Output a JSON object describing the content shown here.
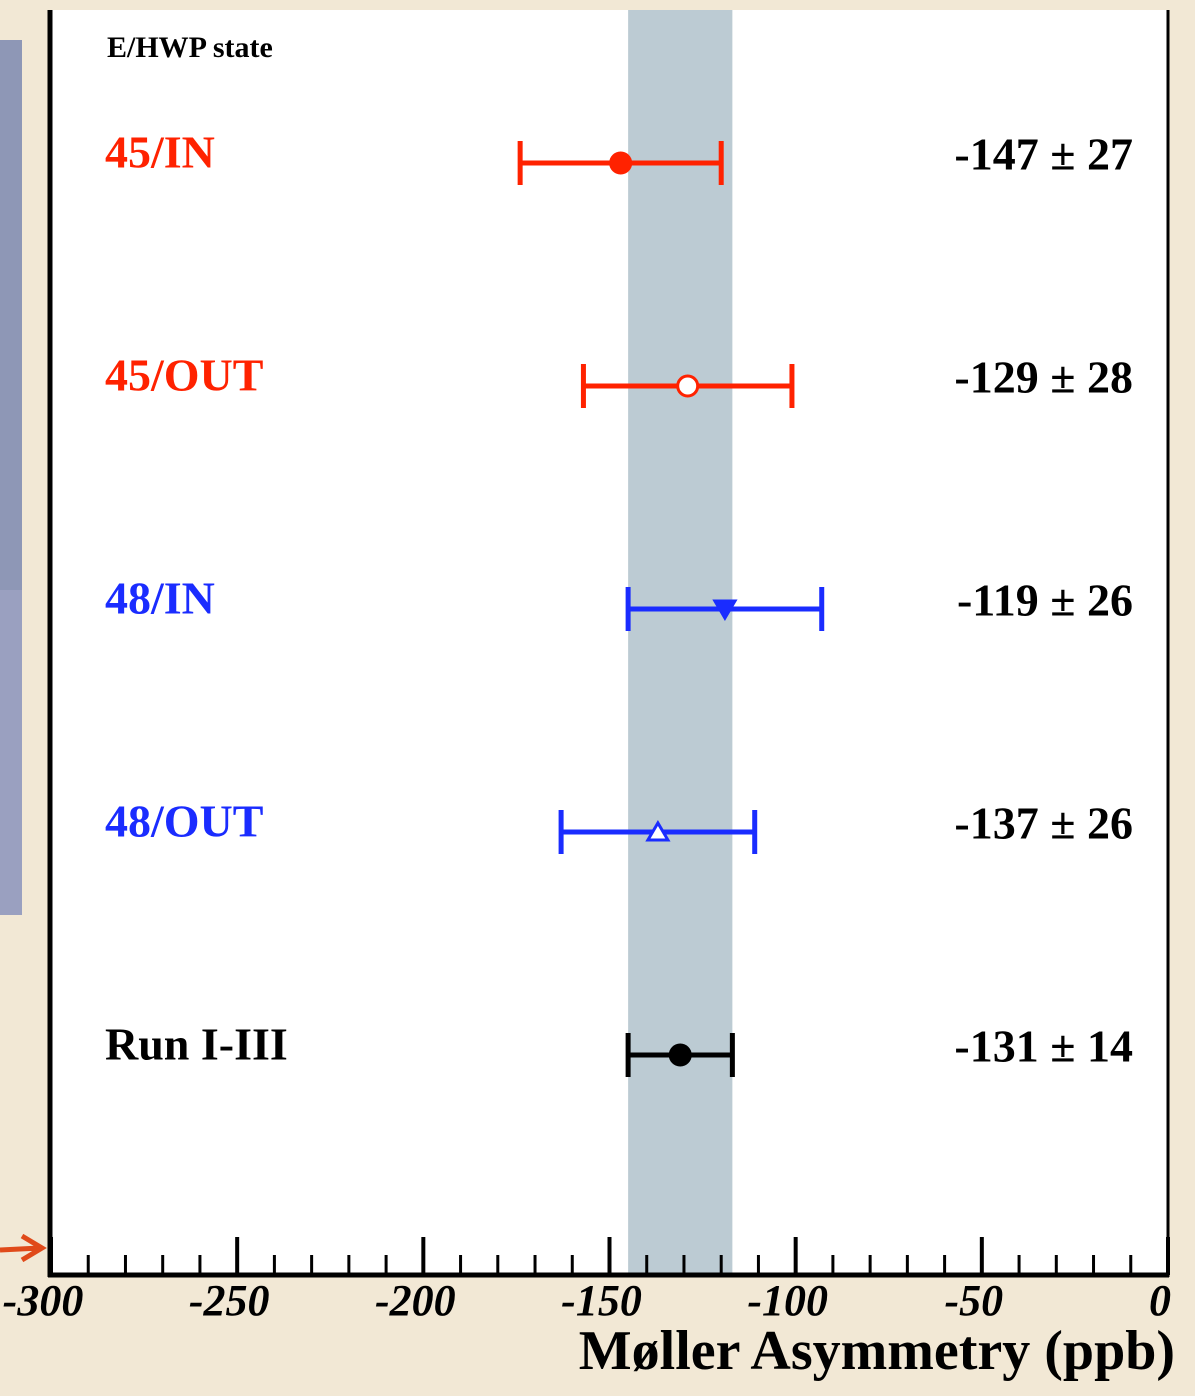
{
  "chart_data": {
    "type": "errorbar",
    "header": "E/HWP state",
    "x_label": "Møller Asymmetry (ppb)",
    "categories": [
      "45/IN",
      "45/OUT",
      "48/IN",
      "48/OUT",
      "Run I-III"
    ],
    "values": [
      -147,
      -129,
      -119,
      -137,
      -131
    ],
    "errors": [
      27,
      28,
      26,
      26,
      14
    ],
    "value_labels": [
      "-147 ± 27",
      "-129 ± 28",
      "-119 ± 26",
      "-137 ± 26",
      "-131 ± 14"
    ],
    "colors": [
      "#ff2200",
      "#ff2200",
      "#1a2cff",
      "#1a2cff",
      "#000000"
    ],
    "markers": [
      "circle-filled",
      "circle-open",
      "triangle-down-filled",
      "triangle-up-open",
      "circle-filled"
    ],
    "band": [
      -145,
      -117
    ],
    "band_color": "#bccbd3",
    "xlim": [
      -300,
      0
    ],
    "xticks": [
      -300,
      -250,
      -200,
      -150,
      -100,
      -50,
      0
    ],
    "minor_xticks": [
      -290,
      -280,
      -270,
      -260,
      -240,
      -230,
      -220,
      -210,
      -190,
      -180,
      -170,
      -160,
      -140,
      -130,
      -120,
      -110,
      -90,
      -80,
      -70,
      -60,
      -40,
      -30,
      -20,
      -10
    ]
  }
}
